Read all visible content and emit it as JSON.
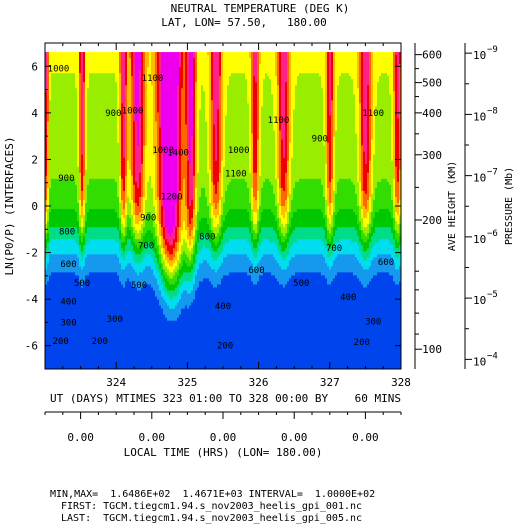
{
  "chart_data": {
    "type": "heatmap",
    "title": "NEUTRAL TEMPERATURE (DEG K)",
    "subtitle": "LAT, LON= 57.50,   180.00",
    "xlabel": "UT (DAYS) MTIMES 323 01:00 TO 328 00:00 BY    60 MINS",
    "ylabel": "LN(P0/P) (INTERFACES)",
    "xlim": [
      323.0,
      328.0
    ],
    "ylim": [
      -7.0,
      7.0
    ],
    "x_ticks": [
      "324",
      "325",
      "326",
      "327",
      "328"
    ],
    "y_ticks": [
      "-6",
      "-4",
      "-2",
      "0",
      "2",
      "4",
      "6"
    ],
    "right_axis_height": {
      "label": "AVE HEIGHT (KM)",
      "ticks": [
        {
          "value": 600,
          "label": "600"
        },
        {
          "value": 500,
          "label": "500"
        },
        {
          "value": 400,
          "label": "400"
        },
        {
          "value": 300,
          "label": "300"
        },
        {
          "value": 200,
          "label": "200"
        },
        {
          "value": 100,
          "label": "100"
        }
      ]
    },
    "right_axis_pressure": {
      "label": "PRESSURE (Mb)",
      "ticks": [
        {
          "exp": -9,
          "label": "10",
          "sup": "−9"
        },
        {
          "exp": -8,
          "label": "10",
          "sup": "−8"
        },
        {
          "exp": -7,
          "label": "10",
          "sup": "−7"
        },
        {
          "exp": -6,
          "label": "10",
          "sup": "−6"
        },
        {
          "exp": -5,
          "label": "10",
          "sup": "−5"
        },
        {
          "exp": -4,
          "label": "10",
          "sup": "−4"
        }
      ]
    },
    "local_time_axis": {
      "label": "LOCAL TIME (HRS) (LON= 180.00)",
      "ticks": [
        "0.00",
        "0.00",
        "0.00",
        "0.00",
        "0.00"
      ]
    },
    "contour_levels": [
      200,
      300,
      400,
      500,
      600,
      700,
      800,
      900,
      1000,
      1100,
      1200,
      1300,
      1400
    ],
    "contour_labels": [
      {
        "x": 323.22,
        "y": -5.8,
        "text": "200"
      },
      {
        "x": 323.77,
        "y": -5.8,
        "text": "200"
      },
      {
        "x": 325.53,
        "y": -6.0,
        "text": "200"
      },
      {
        "x": 327.45,
        "y": -5.85,
        "text": "200"
      },
      {
        "x": 323.33,
        "y": -5.0,
        "text": "300"
      },
      {
        "x": 323.98,
        "y": -4.85,
        "text": "300"
      },
      {
        "x": 327.61,
        "y": -4.95,
        "text": "300"
      },
      {
        "x": 323.33,
        "y": -4.1,
        "text": "400"
      },
      {
        "x": 325.5,
        "y": -4.3,
        "text": "400"
      },
      {
        "x": 327.26,
        "y": -3.9,
        "text": "400"
      },
      {
        "x": 323.52,
        "y": -3.3,
        "text": "500"
      },
      {
        "x": 324.32,
        "y": -3.4,
        "text": "500"
      },
      {
        "x": 326.6,
        "y": -3.3,
        "text": "500"
      },
      {
        "x": 323.33,
        "y": -2.5,
        "text": "600"
      },
      {
        "x": 325.97,
        "y": -2.75,
        "text": "600"
      },
      {
        "x": 327.79,
        "y": -2.4,
        "text": "600"
      },
      {
        "x": 324.42,
        "y": -1.7,
        "text": "700"
      },
      {
        "x": 327.06,
        "y": -1.8,
        "text": "700"
      },
      {
        "x": 323.31,
        "y": -1.1,
        "text": "800"
      },
      {
        "x": 325.28,
        "y": -1.3,
        "text": "800"
      },
      {
        "x": 324.45,
        "y": -0.5,
        "text": "900"
      },
      {
        "x": 323.3,
        "y": 1.2,
        "text": "900"
      },
      {
        "x": 323.96,
        "y": 4.0,
        "text": "900"
      },
      {
        "x": 326.86,
        "y": 2.9,
        "text": "900"
      },
      {
        "x": 324.66,
        "y": 2.4,
        "text": "1000"
      },
      {
        "x": 323.19,
        "y": 5.9,
        "text": "1000"
      },
      {
        "x": 325.72,
        "y": 2.4,
        "text": "1000"
      },
      {
        "x": 324.23,
        "y": 4.1,
        "text": "1000"
      },
      {
        "x": 324.51,
        "y": 5.5,
        "text": "1100"
      },
      {
        "x": 325.68,
        "y": 1.4,
        "text": "1100"
      },
      {
        "x": 326.28,
        "y": 3.7,
        "text": "1100"
      },
      {
        "x": 327.61,
        "y": 4.0,
        "text": "1100"
      },
      {
        "x": 324.78,
        "y": 0.4,
        "text": "1200"
      },
      {
        "x": 324.87,
        "y": 2.3,
        "text": "1400"
      }
    ],
    "stats": "MIN,MAX=  1.6486E+02  1.4671E+03 INTERVAL=  1.0000E+02",
    "first_file": "FIRST: TGCM.tiegcm1.94.s_nov2003_heelis_gpi_001.nc",
    "last_file": "LAST:  TGCM.tiegcm1.94.s_nov2003_heelis_gpi_005.nc",
    "colors": {
      "c200": "#0044ee",
      "c300": "#1499ee",
      "c400": "#00ddee",
      "c500": "#00dd88",
      "c600": "#00c800",
      "c700": "#33dd00",
      "c800": "#99ee00",
      "c900": "#ffff00",
      "c1000": "#ffbb00",
      "c1100": "#ff6600",
      "c1200": "#ee0000",
      "c1300": "#ff2288",
      "c1400": "#ee00ee"
    }
  }
}
